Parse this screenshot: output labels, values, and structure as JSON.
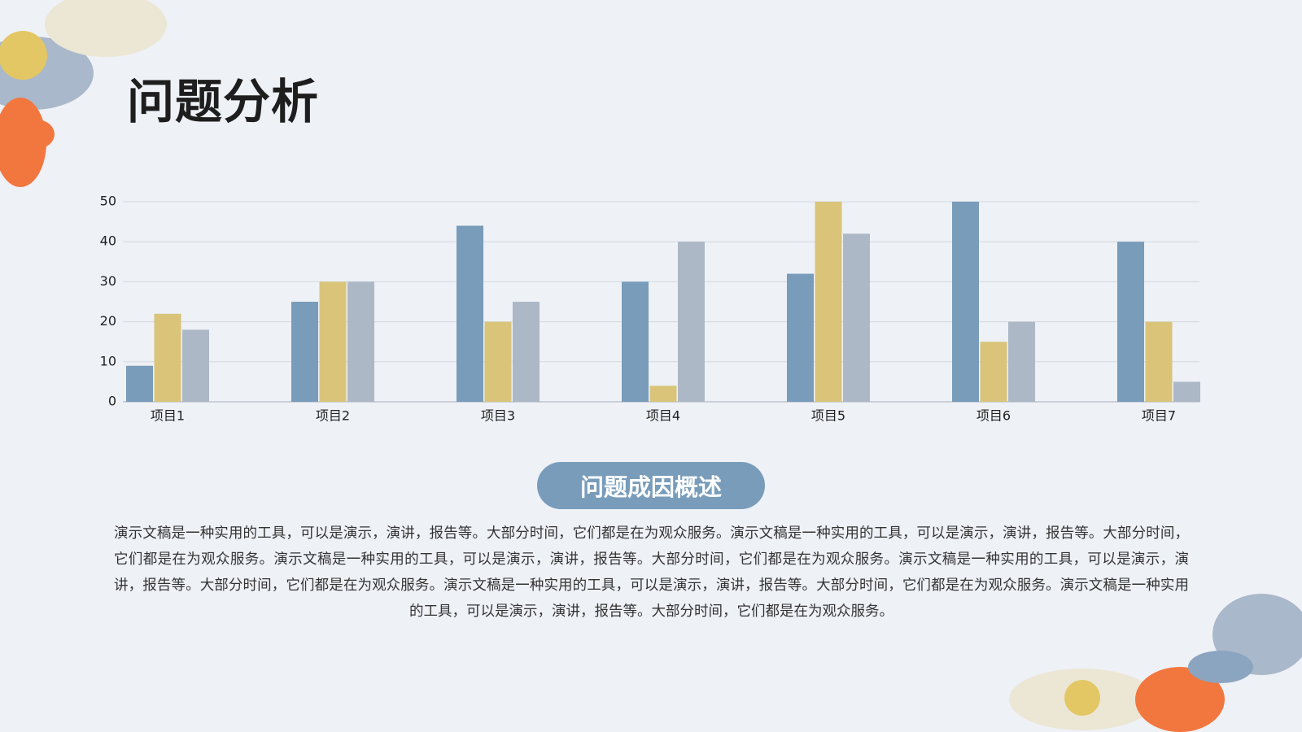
{
  "slide": {
    "title": "问题分析",
    "section_label": "问题成因概述",
    "body": "演示文稿是一种实用的工具，可以是演示，演讲，报告等。大部分时间，它们都是在为观众服务。演示文稿是一种实用的工具，可以是演示，演讲，报告等。大部分时间，它们都是在为观众服务。演示文稿是一种实用的工具，可以是演示，演讲，报告等。大部分时间，它们都是在为观众服务。演示文稿是一种实用的工具，可以是演示，演讲，报告等。大部分时间，它们都是在为观众服务。演示文稿是一种实用的工具，可以是演示，演讲，报告等。大部分时间，它们都是在为观众服务。演示文稿是一种实用的工具，可以是演示，演讲，报告等。大部分时间，它们都是在为观众服务。"
  },
  "chart_data": {
    "type": "bar",
    "categories": [
      "项目1",
      "项目2",
      "项目3",
      "项目4",
      "项目5",
      "项目6",
      "项目7"
    ],
    "series": [
      {
        "color": "#789cba",
        "values": [
          9,
          25,
          44,
          30,
          32,
          50,
          40
        ]
      },
      {
        "color": "#d9c47a",
        "values": [
          22,
          30,
          20,
          4,
          50,
          15,
          20
        ]
      },
      {
        "color": "#adb8c6",
        "values": [
          18,
          30,
          25,
          40,
          42,
          20,
          5
        ]
      }
    ],
    "ylim": [
      0,
      50
    ],
    "yticks": [
      0,
      10,
      20,
      30,
      40,
      50
    ],
    "grid": true
  }
}
